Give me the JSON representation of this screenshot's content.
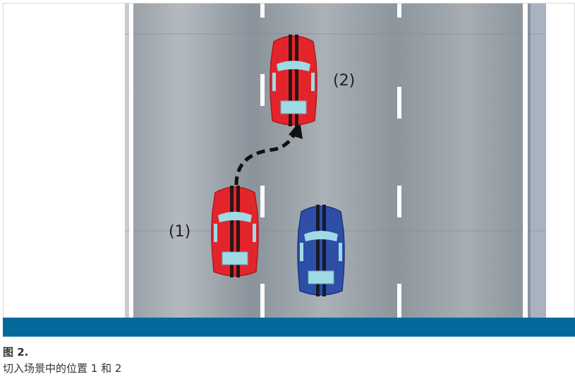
{
  "scene": {
    "labels": {
      "position_1": "(1)",
      "position_2": "(2)"
    },
    "colors": {
      "road": "#8e979f",
      "ego_car": "#e3252b",
      "other_car": "#2e4ea8",
      "window": "#9fdbe6",
      "lane_marking": "#ffffff",
      "trajectory": "#111111"
    }
  },
  "caption": {
    "title": "图 2.",
    "text": "切入场景中的位置 1 和 2"
  },
  "accent_bar_color": "#036a9c"
}
